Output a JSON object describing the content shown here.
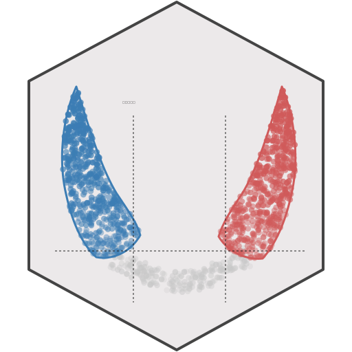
{
  "logo": {
    "tiny_label": "□□□□□",
    "colors": {
      "background": "#ffffff",
      "hex_fill": "#ece9ea",
      "hex_stroke": "#444444",
      "left_points": "#3c7db4",
      "left_outline": "#3c7db4",
      "right_points": "#d05a5a",
      "right_outline": "#d05a5a",
      "middle_points": "#c8c8c8",
      "guide_lines": "#222222"
    }
  }
}
